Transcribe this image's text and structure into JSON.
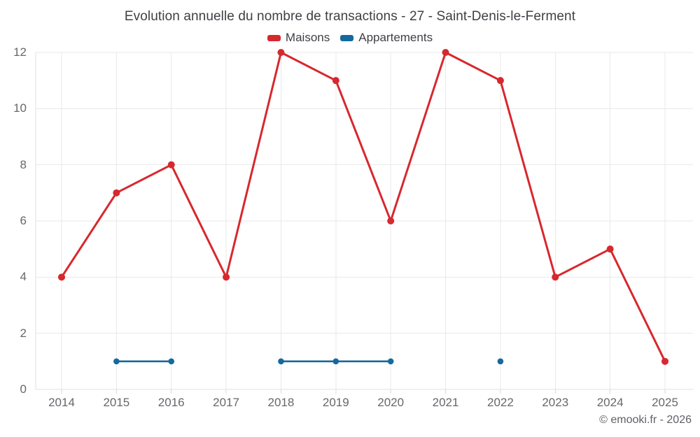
{
  "chart_data": {
    "type": "line",
    "title": "Evolution annuelle du nombre de transactions - 27 - Saint-Denis-le-Ferment",
    "categories": [
      "2014",
      "2015",
      "2016",
      "2017",
      "2018",
      "2019",
      "2020",
      "2021",
      "2022",
      "2023",
      "2024",
      "2025"
    ],
    "series": [
      {
        "name": "Maisons",
        "color": "#d7282e",
        "values": [
          4,
          7,
          8,
          4,
          12,
          11,
          6,
          12,
          11,
          4,
          5,
          1
        ]
      },
      {
        "name": "Appartements",
        "color": "#16699e",
        "values": [
          null,
          1,
          1,
          null,
          1,
          1,
          1,
          null,
          1,
          null,
          null,
          null
        ]
      }
    ],
    "ylim": [
      0,
      12
    ],
    "yticks": [
      0,
      2,
      4,
      6,
      8,
      10,
      12
    ],
    "grid": true,
    "legend_position": "top",
    "xlabel": "",
    "ylabel": ""
  },
  "footer": {
    "copyright": "© emooki.fr - 2026"
  },
  "colors": {
    "grid": "#e9e9e9",
    "axis": "#e2e2e2",
    "tick": "#d9d9d9",
    "title_text": "#3f3f45",
    "label_text": "#67676d",
    "copyright_text": "#5f5f66",
    "background": "#ffffff"
  }
}
